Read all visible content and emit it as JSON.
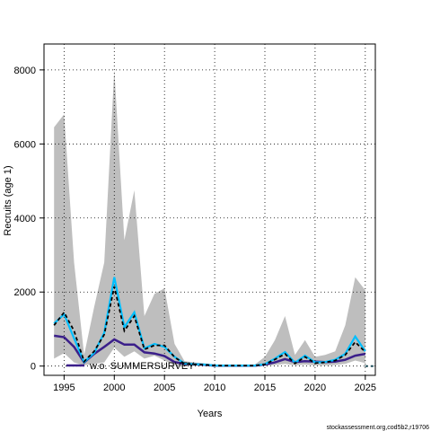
{
  "chart_data": {
    "type": "line",
    "xlabel": "Years",
    "ylabel": "Recruits (age 1)",
    "xlim": [
      1993,
      2026
    ],
    "ylim": [
      -250,
      8700
    ],
    "x_ticks": [
      1995,
      2000,
      2005,
      2010,
      2015,
      2020,
      2025
    ],
    "y_ticks": [
      0,
      2000,
      4000,
      6000,
      8000
    ],
    "grid": true,
    "x": [
      1994,
      1995,
      1996,
      1997,
      1998,
      1999,
      2000,
      2001,
      2002,
      2003,
      2004,
      2005,
      2006,
      2007,
      2008,
      2009,
      2010,
      2011,
      2012,
      2013,
      2014,
      2015,
      2016,
      2017,
      2018,
      2019,
      2020,
      2021,
      2022,
      2023,
      2024,
      2025
    ],
    "band": {
      "color": "#bebebe",
      "upper": [
        6450,
        6800,
        2800,
        300,
        1600,
        2800,
        8000,
        3400,
        4750,
        1350,
        1950,
        2100,
        600,
        130,
        100,
        70,
        40,
        40,
        40,
        40,
        40,
        250,
        700,
        1350,
        300,
        700,
        250,
        300,
        400,
        1100,
        2400,
        2050
      ],
      "lower": [
        200,
        350,
        100,
        20,
        60,
        100,
        500,
        250,
        400,
        200,
        280,
        150,
        30,
        10,
        5,
        5,
        3,
        3,
        3,
        3,
        3,
        10,
        30,
        60,
        20,
        40,
        20,
        20,
        30,
        60,
        150,
        80
      ]
    },
    "series": [
      {
        "color": "#000000",
        "style": "dashed",
        "values": [
          1100,
          1450,
          950,
          120,
          400,
          850,
          2150,
          950,
          1350,
          450,
          560,
          560,
          240,
          60,
          45,
          35,
          12,
          12,
          12,
          12,
          12,
          45,
          180,
          330,
          70,
          250,
          80,
          100,
          150,
          300,
          650,
          380
        ]
      },
      {
        "color": "#00bfff",
        "style": "solid",
        "values": [
          1150,
          1400,
          750,
          110,
          360,
          900,
          2400,
          1050,
          1450,
          480,
          600,
          520,
          250,
          70,
          50,
          40,
          15,
          15,
          15,
          15,
          15,
          50,
          200,
          380,
          90,
          280,
          100,
          110,
          170,
          330,
          800,
          400
        ]
      },
      {
        "color": "#3b1f8a",
        "style": "solid",
        "values": [
          820,
          780,
          520,
          100,
          330,
          520,
          720,
          580,
          580,
          370,
          340,
          270,
          110,
          60,
          45,
          35,
          12,
          12,
          12,
          12,
          12,
          40,
          100,
          190,
          110,
          130,
          120,
          110,
          120,
          170,
          280,
          330
        ]
      }
    ],
    "tail": {
      "x": [
        2025,
        2026
      ],
      "values": [
        0,
        0
      ]
    },
    "legend": [
      {
        "label": "w.o. SUMMERSURVEY",
        "color": "#3b1f8a"
      }
    ]
  },
  "footer": "stockassessment.org,cod5b2,r19706"
}
